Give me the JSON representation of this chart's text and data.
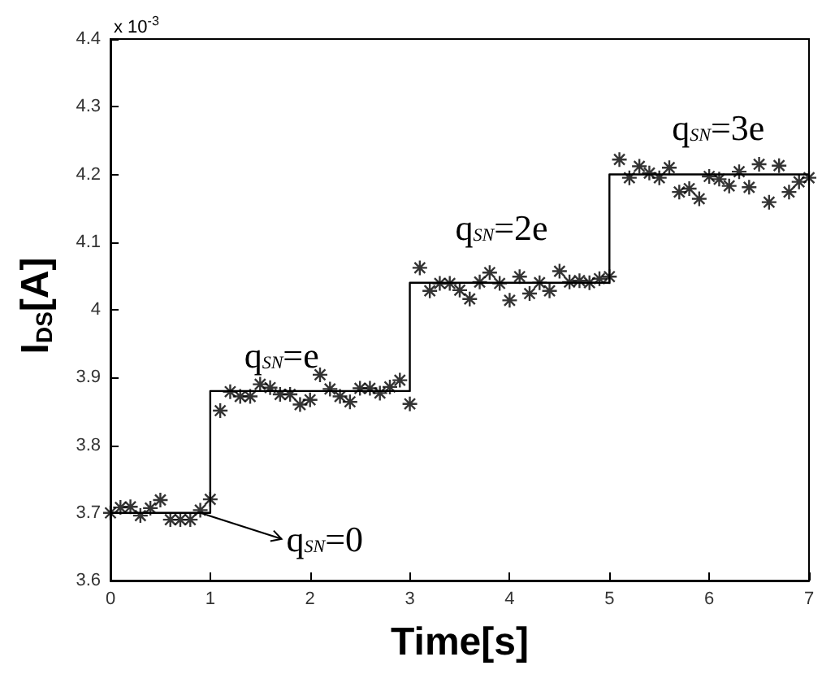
{
  "chart_data": {
    "type": "scatter",
    "xlabel": "Time[s]",
    "ylabel": "I$_{DS}$[A]",
    "xlim": [
      0,
      7
    ],
    "xticks": [
      0,
      1,
      2,
      3,
      4,
      5,
      6,
      7
    ],
    "ylim": [
      3.6,
      4.4
    ],
    "yticks": [
      3.6,
      3.7,
      3.8,
      3.9,
      4,
      4.1,
      4.2,
      4.3,
      4.4
    ],
    "grid": false,
    "series": [
      {
        "marker": "cross",
        "color": "#000000",
        "x": [
          0,
          0.1,
          0.2,
          0.3,
          0.4,
          0.5,
          0.6,
          0.7,
          0.8,
          0.9,
          1.0,
          1.1,
          1.2,
          1.3,
          1.4,
          1.5,
          1.6,
          1.7,
          1.8,
          1.9,
          2.0,
          2.1,
          2.2,
          2.3,
          2.4,
          2.5,
          2.6,
          2.7,
          2.8,
          2.9,
          3.0,
          3.1,
          3.2,
          3.3,
          3.4,
          3.5,
          3.6,
          3.7,
          3.8,
          3.9,
          4.0,
          4.1,
          4.2,
          4.3,
          4.4,
          4.5,
          4.6,
          4.7,
          4.8,
          4.9,
          5.0,
          5.1,
          5.2,
          5.3,
          5.4,
          5.5,
          5.6,
          5.7,
          5.8,
          5.9,
          6.0,
          6.1,
          6.2,
          6.3,
          6.4,
          6.5,
          6.6,
          6.7,
          6.8,
          6.9,
          7.0
        ],
        "values": [
          3.7,
          3.708,
          3.709,
          3.696,
          3.707,
          3.719,
          3.69,
          3.69,
          3.69,
          3.704,
          3.72,
          3.851,
          3.879,
          3.872,
          3.872,
          3.89,
          3.885,
          3.875,
          3.875,
          3.86,
          3.867,
          3.904,
          3.883,
          3.872,
          3.864,
          3.884,
          3.884,
          3.877,
          3.886,
          3.896,
          3.861,
          4.062,
          4.028,
          4.039,
          4.039,
          4.029,
          4.016,
          4.041,
          4.055,
          4.039,
          4.014,
          4.049,
          4.024,
          4.04,
          4.028,
          4.057,
          4.041,
          4.043,
          4.04,
          4.046,
          4.049,
          4.222,
          4.195,
          4.212,
          4.202,
          4.195,
          4.21,
          4.174,
          4.179,
          4.164,
          4.197,
          4.193,
          4.183,
          4.204,
          4.181,
          4.215,
          4.159,
          4.213,
          4.174,
          4.189,
          4.195
        ]
      },
      {
        "type": "step",
        "marker": "none",
        "color": "#000000",
        "x": [
          0,
          1,
          3,
          5,
          7
        ],
        "values": [
          3.7,
          3.88,
          4.04,
          4.2,
          4.2
        ]
      }
    ],
    "annotations": [
      {
        "text": "q$_{SN}$=0",
        "x": 0.9,
        "y": 3.7
      },
      "q$_{SN}$=e",
      "q$_{SN}$=2e",
      "q$_{SN}$=3e",
      "x 10$^{-3}$"
    ]
  }
}
